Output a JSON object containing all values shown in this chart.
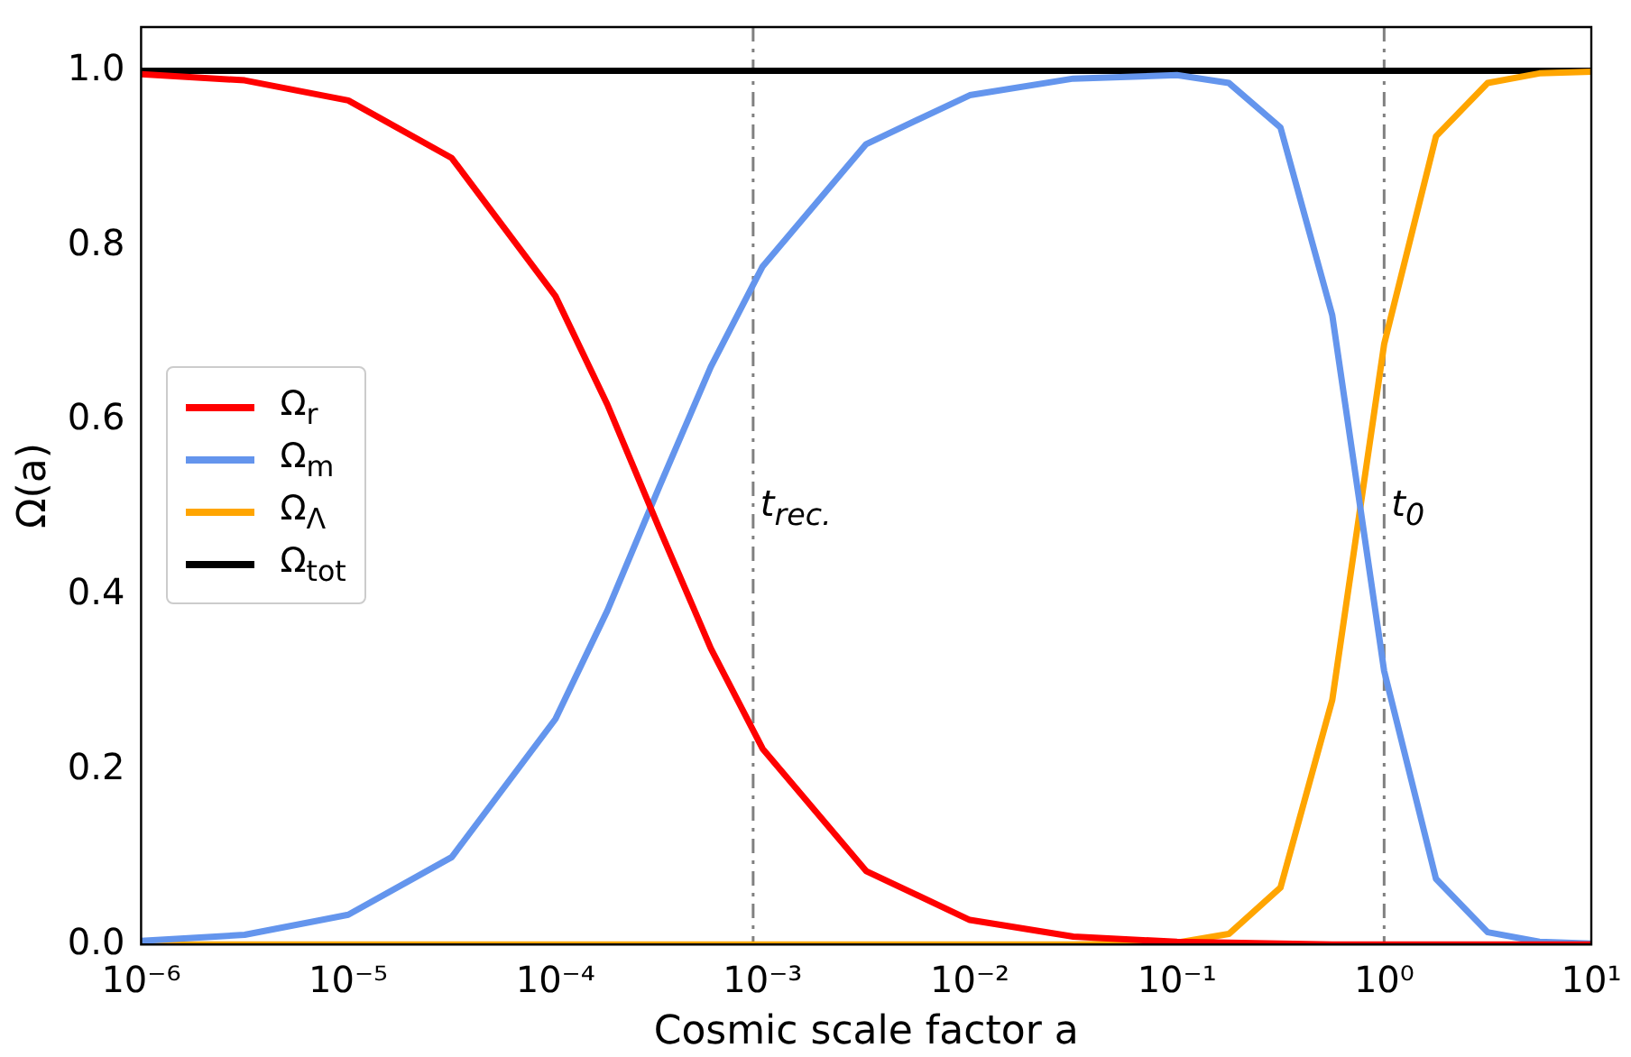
{
  "chart_data": {
    "type": "line",
    "xlabel": "Cosmic scale factor a",
    "ylabel": "Ω(a)",
    "log": "x",
    "xlim": [
      1e-06,
      10
    ],
    "ylim": [
      0,
      1.05
    ],
    "xticks": [
      {
        "value": 1e-06,
        "label": "10⁻⁶"
      },
      {
        "value": 1e-05,
        "label": "10⁻⁵"
      },
      {
        "value": 0.0001,
        "label": "10⁻⁴"
      },
      {
        "value": 0.001,
        "label": "10⁻³"
      },
      {
        "value": 0.01,
        "label": "10⁻²"
      },
      {
        "value": 0.1,
        "label": "10⁻¹"
      },
      {
        "value": 1,
        "label": "10⁰"
      },
      {
        "value": 10,
        "label": "10¹"
      }
    ],
    "yticks": [
      {
        "value": 0,
        "label": "0.0"
      },
      {
        "value": 0.2,
        "label": "0.2"
      },
      {
        "value": 0.4,
        "label": "0.4"
      },
      {
        "value": 0.6,
        "label": "0.6"
      },
      {
        "value": 0.8,
        "label": "0.8"
      },
      {
        "value": 1,
        "label": "1.0"
      }
    ],
    "x": [
      1e-06,
      3.16e-06,
      1e-05,
      3.16e-05,
      0.0001,
      0.000178,
      0.000316,
      0.000562,
      0.001,
      0.00316,
      0.01,
      0.0316,
      0.1,
      0.178,
      0.316,
      0.562,
      1,
      1.78,
      3.16,
      5.62,
      10
    ],
    "series": [
      {
        "name": "Ω$_{r}$",
        "color": "#ff0000",
        "values": [
          0.996,
          0.989,
          0.966,
          0.9,
          0.742,
          0.618,
          0.477,
          0.339,
          0.224,
          0.084,
          0.028,
          0.009,
          0.003,
          0.002,
          0.001,
          0,
          0,
          0,
          0,
          0,
          0
        ]
      },
      {
        "name": "Ω$_{m}$",
        "color": "#6495ed",
        "values": [
          0.004,
          0.011,
          0.034,
          0.1,
          0.258,
          0.382,
          0.523,
          0.661,
          0.776,
          0.916,
          0.972,
          0.991,
          0.995,
          0.986,
          0.935,
          0.72,
          0.313,
          0.075,
          0.014,
          0.003,
          0.001
        ]
      },
      {
        "name": "Ω$_{Λ}$",
        "color": "#ffa500",
        "values": [
          0,
          0,
          0,
          0,
          0,
          0,
          0,
          0,
          0,
          0,
          0,
          0,
          0.002,
          0.012,
          0.065,
          0.28,
          0.687,
          0.925,
          0.986,
          0.997,
          0.999
        ]
      },
      {
        "name": "Ω$_{tot}$",
        "color": "#000000",
        "x": [
          1e-06,
          10
        ],
        "values": [
          1,
          1
        ]
      }
    ],
    "ref_lines": [
      {
        "axis": "x",
        "value": 0.0009,
        "label": "t$_{rec.}$",
        "color": "#808080",
        "line_style": "dashdot"
      },
      {
        "axis": "x",
        "value": 1,
        "label": "t$_{0}$",
        "color": "#808080",
        "line_style": "dashdot"
      }
    ],
    "legend": "center left",
    "grid": false,
    "marker": "none",
    "line_style": "solid"
  }
}
